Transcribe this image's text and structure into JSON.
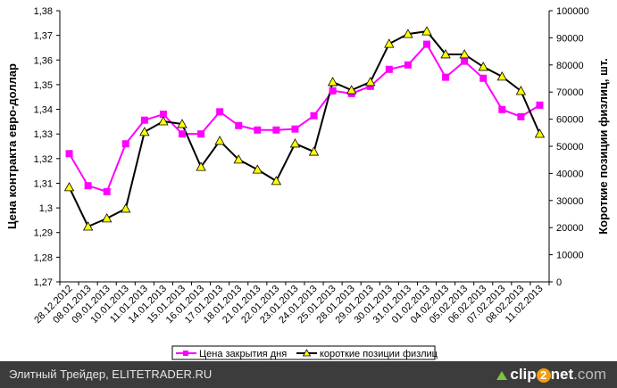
{
  "chart_data": {
    "type": "line",
    "categories": [
      "28.12.2012",
      "08.01.2013",
      "09.01.2013",
      "10.01.2013",
      "11.01.2013",
      "14.01.2013",
      "15.01.2013",
      "16.01.2013",
      "17.01.2013",
      "18.01.2013",
      "21.01.2013",
      "22.01.2013",
      "23.01.2013",
      "24.01.2013",
      "25.01.2013",
      "28.01.2013",
      "29.01.2013",
      "30.01.2013",
      "31.01.2013",
      "01.02.2013",
      "04.02.2013",
      "05.02.2013",
      "06.02.2013",
      "07.02.2013",
      "08.02.2013",
      "11.02.2013"
    ],
    "series": [
      {
        "name": "Цена закрытия дня",
        "axis": "left",
        "color": "#ff00ff",
        "marker": "square",
        "values": [
          1.322,
          1.309,
          1.3066,
          1.326,
          1.3356,
          1.338,
          1.33,
          1.33,
          1.339,
          1.3334,
          1.3316,
          1.3316,
          1.332,
          1.3374,
          1.3475,
          1.3464,
          1.3493,
          1.3562,
          1.358,
          1.3664,
          1.353,
          1.3595,
          1.3526,
          1.3399,
          1.337,
          1.3417
        ]
      },
      {
        "name": "короткие позиции физлиц",
        "axis": "right",
        "color": "#000000",
        "marker": "triangle",
        "marker_fill": "#ffff00",
        "values": [
          34900,
          20400,
          23400,
          27000,
          55300,
          59200,
          58200,
          42400,
          52000,
          45100,
          41400,
          37200,
          51000,
          48000,
          73700,
          70700,
          73700,
          87800,
          91400,
          92400,
          83900,
          83900,
          79300,
          75700,
          70400,
          54600
        ]
      }
    ],
    "ylabel": "Цена контракта евро-доллар",
    "ylabel_right": "Короткие позиции физлиц, шт.",
    "ylim": [
      1.27,
      1.38
    ],
    "ylim_right": [
      0,
      100000
    ],
    "yticks": [
      "1,27",
      "1,28",
      "1,29",
      "1,3",
      "1,31",
      "1,32",
      "1,33",
      "1,34",
      "1,35",
      "1,36",
      "1,37",
      "1,38"
    ],
    "yticks_right": [
      "0",
      "10000",
      "20000",
      "30000",
      "40000",
      "50000",
      "60000",
      "70000",
      "80000",
      "90000",
      "100000"
    ],
    "legend_position": "bottom",
    "grid": false
  },
  "footer": {
    "text": "Элитный Трейдер, ELITETRADER.RU",
    "logo_a": "clip",
    "logo_b": "2",
    "logo_c": "net",
    ".com": ".com",
    "logo_d": ".com"
  }
}
